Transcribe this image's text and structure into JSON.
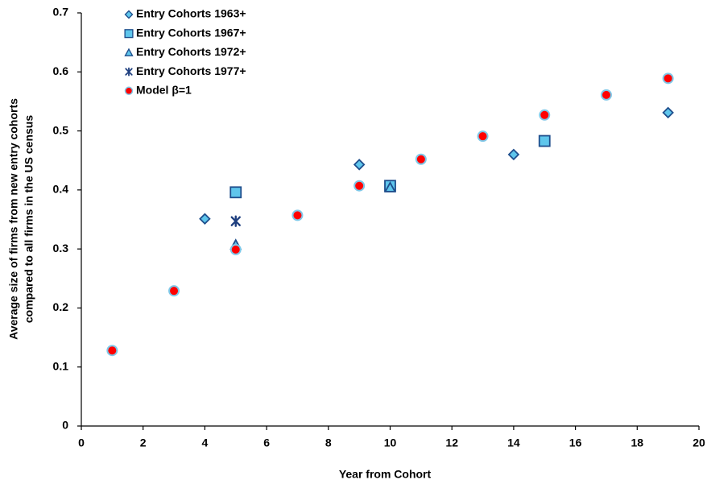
{
  "chart_data": {
    "type": "scatter",
    "xlabel": "Year from Cohort",
    "ylabel": [
      "Average size of firms from new entry cohorts",
      "compared to all firms in the US census"
    ],
    "xlim": [
      0,
      20
    ],
    "ylim": [
      0,
      0.7
    ],
    "xticks": [
      0,
      2,
      4,
      6,
      8,
      10,
      12,
      14,
      16,
      18,
      20
    ],
    "yticks": [
      0,
      0.1,
      0.2,
      0.3,
      0.4,
      0.5,
      0.6,
      0.7
    ],
    "grid": false,
    "legend": "upper left",
    "series": [
      {
        "name": "Entry Cohorts 1963+",
        "marker": "diamond",
        "color": "#5fc6ec",
        "edgecolor": "#1f4e8c",
        "x": [
          4,
          9,
          14,
          19
        ],
        "values": [
          0.351,
          0.443,
          0.46,
          0.531
        ]
      },
      {
        "name": "Entry Cohorts 1967+",
        "marker": "square",
        "color": "#5fc6ec",
        "edgecolor": "#1f4e8c",
        "x": [
          5,
          10,
          15
        ],
        "values": [
          0.396,
          0.407,
          0.483
        ]
      },
      {
        "name": "Entry Cohorts 1972+",
        "marker": "triangle",
        "color": "#5fc6ec",
        "edgecolor": "#1f4e8c",
        "x": [
          5,
          10
        ],
        "values": [
          0.307,
          0.404
        ]
      },
      {
        "name": "Entry Cohorts 1977+",
        "marker": "star",
        "color": "#1f3f7f",
        "edgecolor": "#1f3f7f",
        "x": [
          5
        ],
        "values": [
          0.347
        ]
      },
      {
        "name": "Model β=1",
        "marker": "circle",
        "color": "#ff0000",
        "edgecolor": "#7fc8e8",
        "x": [
          1,
          3,
          5,
          7,
          9,
          11,
          13,
          15,
          17,
          19
        ],
        "values": [
          0.128,
          0.229,
          0.299,
          0.357,
          0.407,
          0.452,
          0.491,
          0.527,
          0.561,
          0.589
        ]
      }
    ]
  }
}
